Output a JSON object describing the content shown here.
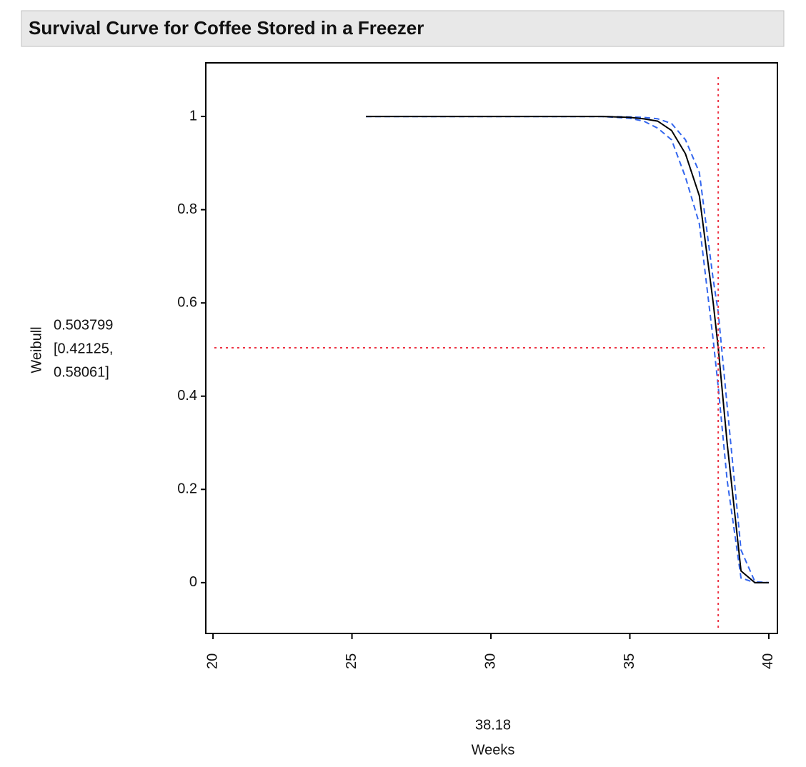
{
  "chart_data": {
    "type": "line",
    "title": "Survival Curve for Coffee Stored in a Freezer",
    "x_label": "Weeks",
    "y_label": "Weibull",
    "x": [
      25.5,
      30,
      34,
      35,
      35.5,
      36,
      36.5,
      37,
      37.5,
      38,
      38.18,
      38.5,
      39,
      39.5,
      40
    ],
    "series": [
      {
        "color": "#000000",
        "dash": false,
        "values": [
          1,
          1,
          1,
          0.998,
          0.995,
          0.99,
          0.97,
          0.92,
          0.83,
          0.6,
          0.504,
          0.3,
          0.025,
          0,
          0
        ]
      },
      {
        "color": "#3366ee",
        "dash": true,
        "values": [
          1,
          1,
          1,
          0.999,
          0.998,
          0.995,
          0.985,
          0.95,
          0.88,
          0.65,
          0.58,
          0.38,
          0.07,
          0.002,
          0
        ]
      },
      {
        "color": "#3366ee",
        "dash": true,
        "values": [
          1,
          1,
          1,
          0.996,
          0.99,
          0.975,
          0.95,
          0.87,
          0.77,
          0.52,
          0.42,
          0.22,
          0.01,
          0,
          0
        ]
      }
    ],
    "xlim": [
      19.74,
      40.31
    ],
    "ylim": [
      -0.109,
      1.115
    ],
    "xticks": [
      20,
      25,
      30,
      35,
      40
    ],
    "yticks": [
      0,
      0.2,
      0.4,
      0.6,
      0.8,
      1
    ],
    "crosshair_color": "#ee3344",
    "x_value": 38.18,
    "y_value": 0.503799,
    "y_interval": [
      {
        "value": 0.42125,
        "label": "[0.42125,"
      },
      {
        "value": 0.58061,
        "label": "0.58061]"
      }
    ]
  }
}
